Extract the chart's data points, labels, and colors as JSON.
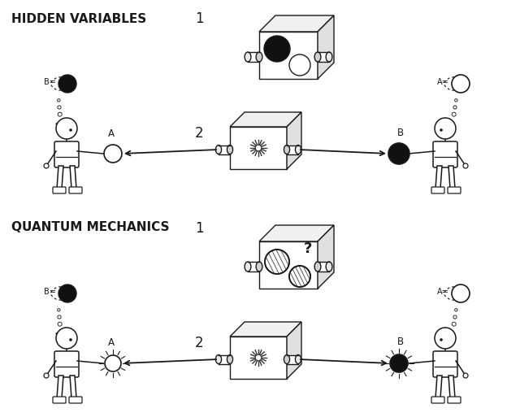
{
  "title_hv": "HIDDEN VARIABLES",
  "title_qm": "QUANTUM MECHANICS",
  "label_1": "1",
  "label_2": "2",
  "label_A": "A",
  "label_B": "B",
  "label_Beq": "B=",
  "label_Aeq": "A=",
  "bg_color": "#ffffff",
  "line_color": "#1a1a1a",
  "dark_ball": "#111111",
  "light_ball": "#ffffff",
  "lw": 1.0,
  "plw": 1.1,
  "box_face": "#ffffff",
  "box_top": "#f5f5f5",
  "box_side": "#e8e8e8"
}
